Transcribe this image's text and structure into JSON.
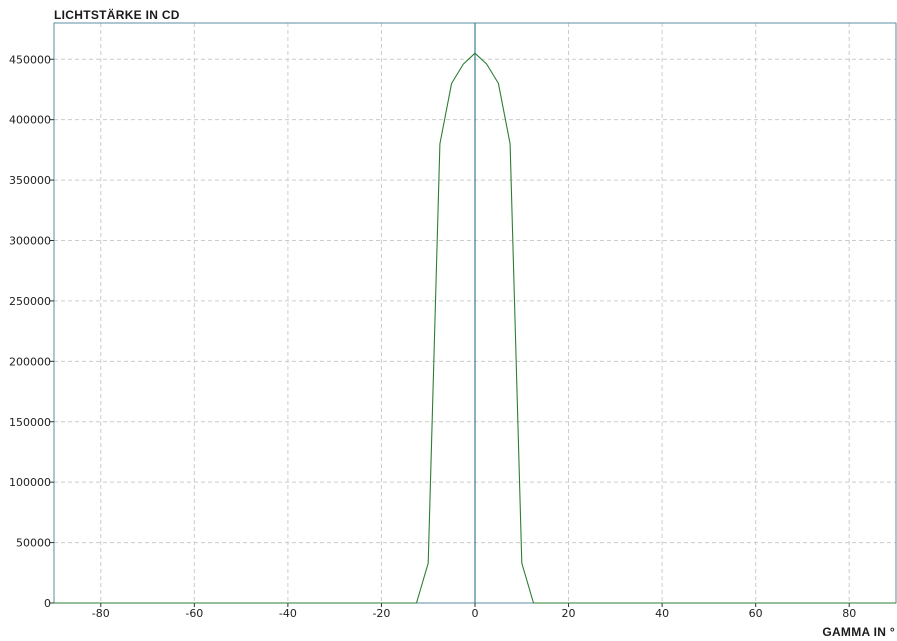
{
  "chart_data": {
    "type": "line",
    "ylabel": "LICHTSTÄRKE IN CD",
    "xlabel": "GAMMA IN °",
    "xlim": [
      -90,
      90
    ],
    "ylim": [
      0,
      480000
    ],
    "xticks": [
      -80,
      -60,
      -40,
      -20,
      0,
      20,
      40,
      60,
      80
    ],
    "yticks": [
      0,
      50000,
      100000,
      150000,
      200000,
      250000,
      300000,
      350000,
      400000,
      450000
    ],
    "grid": true,
    "series": [
      {
        "color": "#2e7d32",
        "x": [
          -90,
          -12.5,
          -10,
          -7.5,
          -5,
          -2.5,
          0,
          2.5,
          5,
          7.5,
          10,
          12.5,
          90
        ],
        "y": [
          0,
          0,
          33000,
          380000,
          430000,
          446000,
          455000,
          446000,
          430000,
          380000,
          33000,
          0,
          0
        ]
      }
    ]
  },
  "colors": {
    "frame": "#5b8fa0",
    "zero_line": "#3a7e93",
    "grid": "#cccccc",
    "series": "#2e7d32"
  }
}
